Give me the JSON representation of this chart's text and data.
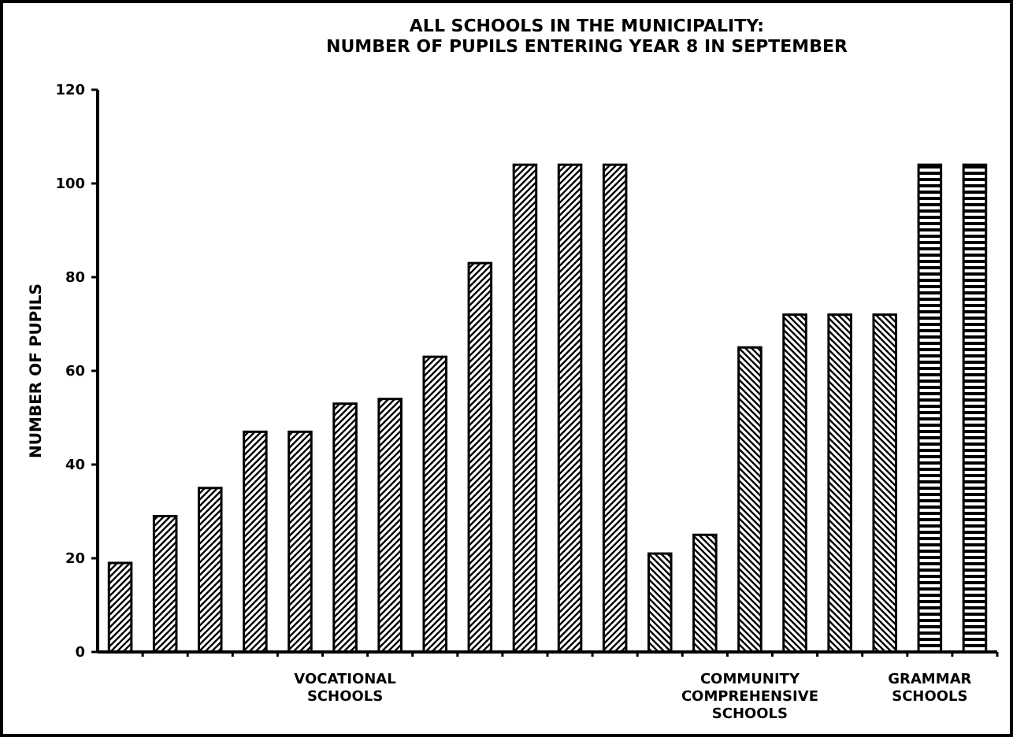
{
  "chart_data": {
    "type": "bar",
    "title": "ALL SCHOOLS IN THE MUNICIPALITY:\nNUMBER OF PUPILS ENTERING YEAR 8 IN SEPTEMBER",
    "ylabel": "NUMBER OF PUPILS",
    "categories": [
      null,
      null,
      null,
      null,
      null,
      "VOCATIONAL SCHOOLS",
      null,
      null,
      null,
      null,
      null,
      null,
      null,
      null,
      "COMMUNITY COMPREHENSIVE SCHOOLS",
      null,
      null,
      null,
      "GRAMMAR SCHOOLS",
      null
    ],
    "series": [
      {
        "color": "#000000",
        "values": [
          19,
          29,
          35,
          47,
          47,
          53,
          54,
          63,
          83,
          104,
          104,
          104,
          null,
          null,
          null,
          null,
          null,
          null,
          null,
          null
        ]
      },
      {
        "color": "#000000",
        "values": [
          null,
          null,
          null,
          null,
          null,
          null,
          null,
          null,
          null,
          null,
          null,
          null,
          21,
          25,
          65,
          72,
          72,
          72,
          null,
          null
        ]
      },
      {
        "color": "#000000",
        "values": [
          null,
          null,
          null,
          null,
          null,
          null,
          null,
          null,
          null,
          null,
          null,
          null,
          null,
          null,
          null,
          null,
          null,
          null,
          104,
          104
        ]
      }
    ],
    "ylim": [
      0,
      120
    ],
    "yticks": [
      0,
      20,
      40,
      60,
      80,
      100,
      120
    ],
    "grid": false
  }
}
